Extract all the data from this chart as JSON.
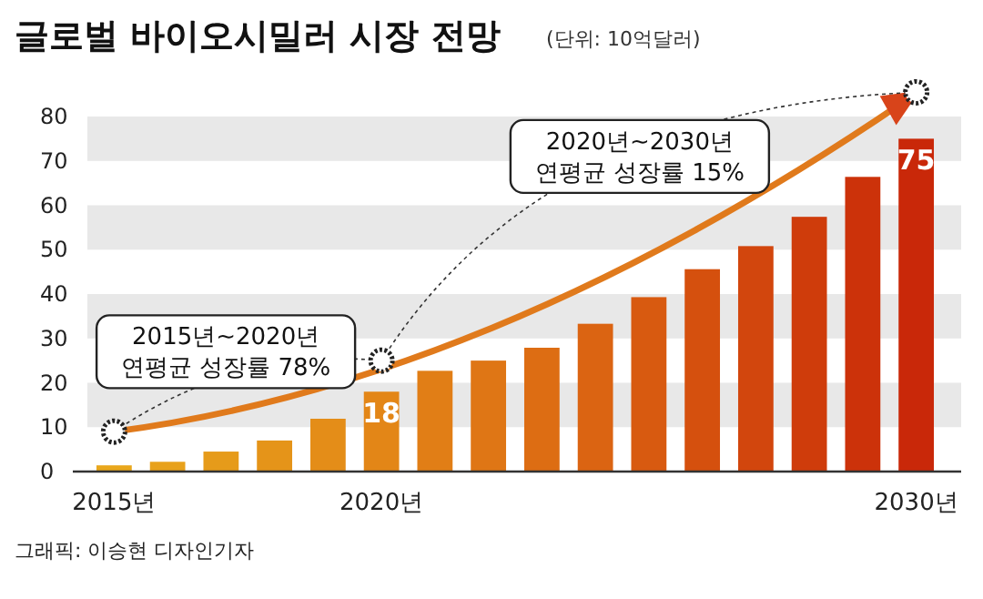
{
  "chart_data": {
    "type": "bar",
    "title": "글로벌 바이오시밀러 시장 전망",
    "subtitle": "(단위: 10억달러)",
    "categories": [
      "2015년",
      null,
      null,
      null,
      null,
      "2020년",
      null,
      null,
      null,
      null,
      null,
      null,
      null,
      null,
      null,
      "2030년"
    ],
    "values": [
      1.4,
      2.2,
      4.5,
      7,
      11.9,
      18,
      22.7,
      25,
      27.9,
      33.3,
      39.3,
      45.6,
      50.8,
      57.4,
      66.4,
      75
    ],
    "value_labels": [
      null,
      null,
      null,
      null,
      null,
      "18",
      null,
      null,
      null,
      null,
      null,
      null,
      null,
      null,
      null,
      "75"
    ],
    "colors": [
      "#e9a71c",
      "#e8a11b",
      "#e69b1a",
      "#e59419",
      "#e48d18",
      "#e38617",
      "#e17e16",
      "#df7615",
      "#dd6d13",
      "#db6412",
      "#d85a10",
      "#d5500e",
      "#d2460d",
      "#cf3c0b",
      "#cc320a",
      "#c92809"
    ],
    "ylim": [
      0,
      80
    ],
    "yticks": [
      0,
      10,
      20,
      30,
      40,
      50,
      60,
      70,
      80
    ],
    "bands": [
      {
        "axis": "y",
        "from": 10,
        "to": 20,
        "color": "#e8e8e8"
      },
      {
        "axis": "y",
        "from": 30,
        "to": 40,
        "color": "#e8e8e8"
      },
      {
        "axis": "y",
        "from": 50,
        "to": 60,
        "color": "#e8e8e8"
      },
      {
        "axis": "y",
        "from": 70,
        "to": 80,
        "color": "#e8e8e8"
      }
    ],
    "annotations": [
      "2015년~2020년\n연평균 성장률 78%",
      "2020년~2030년\n연평균 성장률 15%",
      "그래픽: 이승현 디자인기자"
    ]
  }
}
